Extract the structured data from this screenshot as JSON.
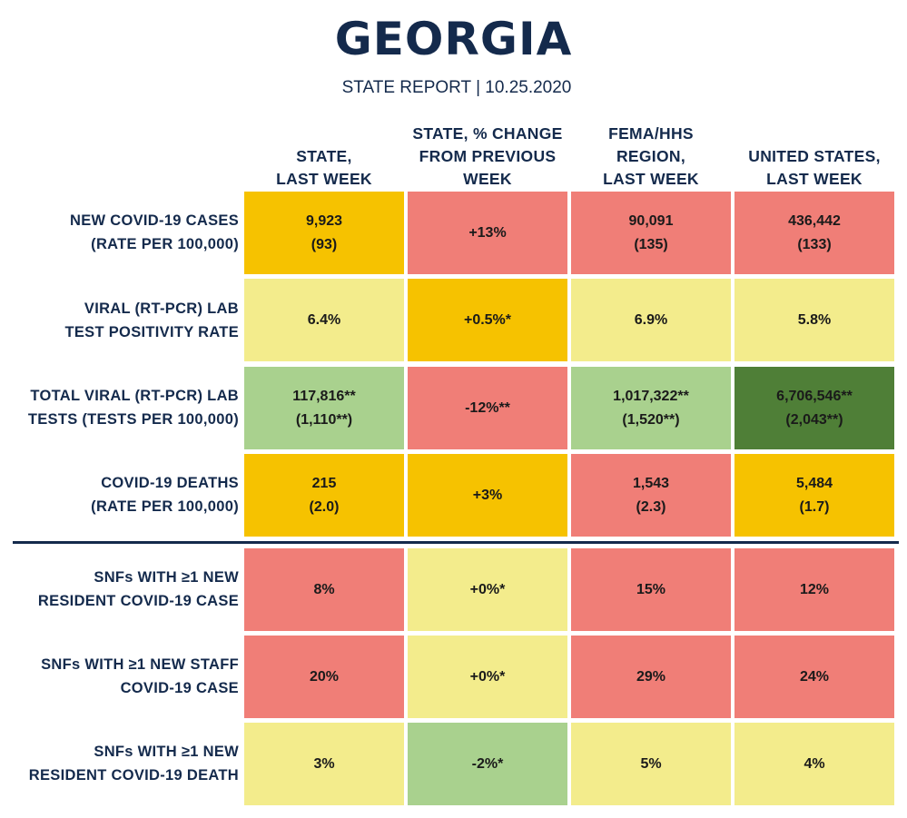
{
  "title": "GEORGIA",
  "subtitle": "STATE REPORT | 10.25.2020",
  "columns": [
    {
      "line1": "STATE,",
      "line2": "LAST WEEK"
    },
    {
      "line1": "STATE, % CHANGE",
      "line2": "FROM PREVIOUS",
      "line3": "WEEK"
    },
    {
      "line1": "FEMA/HHS",
      "line2": "REGION,",
      "line3": "LAST WEEK"
    },
    {
      "line1": "UNITED STATES,",
      "line2": "LAST WEEK"
    }
  ],
  "rows": [
    {
      "label1": "NEW COVID-19 CASES",
      "label2": "(RATE PER 100,000)",
      "cells": [
        {
          "v1": "9,923",
          "v2": "(93)",
          "color": "#f6c200"
        },
        {
          "v1": "+13%",
          "v2": "",
          "color": "#f07e77"
        },
        {
          "v1": "90,091",
          "v2": "(135)",
          "color": "#f07e77"
        },
        {
          "v1": "436,442",
          "v2": "(133)",
          "color": "#f07e77"
        }
      ]
    },
    {
      "label1": "VIRAL (RT-PCR) LAB",
      "label2": "TEST POSITIVITY RATE",
      "cells": [
        {
          "v1": "6.4%",
          "v2": "",
          "color": "#f3ec8c"
        },
        {
          "v1": "+0.5%*",
          "v2": "",
          "color": "#f6c200"
        },
        {
          "v1": "6.9%",
          "v2": "",
          "color": "#f3ec8c"
        },
        {
          "v1": "5.8%",
          "v2": "",
          "color": "#f3ec8c"
        }
      ]
    },
    {
      "label1": "TOTAL VIRAL (RT-PCR) LAB",
      "label2": "TESTS (TESTS PER 100,000)",
      "cells": [
        {
          "v1": "117,816**",
          "v2": "(1,110**)",
          "color": "#a9d18e"
        },
        {
          "v1": "-12%**",
          "v2": "",
          "color": "#f07e77"
        },
        {
          "v1": "1,017,322**",
          "v2": "(1,520**)",
          "color": "#a9d18e"
        },
        {
          "v1": "6,706,546**",
          "v2": "(2,043**)",
          "color": "#4f7f37"
        }
      ]
    },
    {
      "label1": "COVID-19 DEATHS",
      "label2": "(RATE PER 100,000)",
      "cells": [
        {
          "v1": "215",
          "v2": "(2.0)",
          "color": "#f6c200"
        },
        {
          "v1": "+3%",
          "v2": "",
          "color": "#f6c200"
        },
        {
          "v1": "1,543",
          "v2": "(2.3)",
          "color": "#f07e77"
        },
        {
          "v1": "5,484",
          "v2": "(1.7)",
          "color": "#f6c200"
        }
      ]
    },
    {
      "label1": "SNFs WITH ≥1 NEW",
      "label2": "RESIDENT COVID-19 CASE",
      "cells": [
        {
          "v1": "8%",
          "v2": "",
          "color": "#f07e77"
        },
        {
          "v1": "+0%*",
          "v2": "",
          "color": "#f3ec8c"
        },
        {
          "v1": "15%",
          "v2": "",
          "color": "#f07e77"
        },
        {
          "v1": "12%",
          "v2": "",
          "color": "#f07e77"
        }
      ]
    },
    {
      "label1": "SNFs WITH ≥1 NEW STAFF",
      "label2": "COVID-19 CASE",
      "cells": [
        {
          "v1": "20%",
          "v2": "",
          "color": "#f07e77"
        },
        {
          "v1": "+0%*",
          "v2": "",
          "color": "#f3ec8c"
        },
        {
          "v1": "29%",
          "v2": "",
          "color": "#f07e77"
        },
        {
          "v1": "24%",
          "v2": "",
          "color": "#f07e77"
        }
      ]
    },
    {
      "label1": "SNFs WITH ≥1 NEW",
      "label2": "RESIDENT COVID-19 DEATH",
      "cells": [
        {
          "v1": "3%",
          "v2": "",
          "color": "#f3ec8c"
        },
        {
          "v1": "-2%*",
          "v2": "",
          "color": "#a9d18e"
        },
        {
          "v1": "5%",
          "v2": "",
          "color": "#f3ec8c"
        },
        {
          "v1": "4%",
          "v2": "",
          "color": "#f3ec8c"
        }
      ]
    }
  ]
}
